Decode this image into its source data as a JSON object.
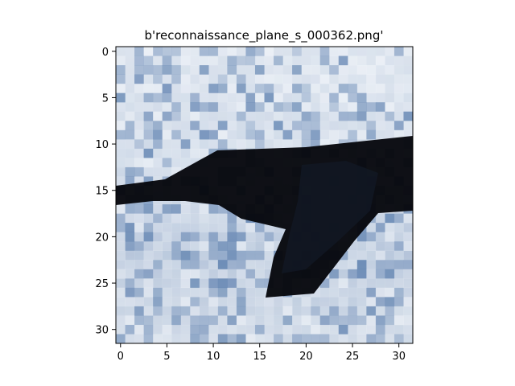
{
  "figure": {
    "title": "b'reconnaissance_plane_s_000362.png'"
  },
  "image": {
    "subject": "aircraft silhouette against a cloudy sky",
    "pixel_grid": [
      32,
      32
    ],
    "palette": {
      "sky_light": "#dfe6ef",
      "sky_blue": "#8fa7c8",
      "sky_deep": "#5c7fae",
      "cloud_white": "#f2f5f9",
      "plane_dark": "#06070d",
      "plane_edge": "#1b2738"
    }
  },
  "axes": {
    "x_ticks": [
      "0",
      "5",
      "10",
      "15",
      "20",
      "25",
      "30"
    ],
    "y_ticks": [
      "0",
      "5",
      "10",
      "15",
      "20",
      "25",
      "30"
    ],
    "x_range": [
      -0.5,
      31.5
    ],
    "y_range": [
      -0.5,
      31.5
    ]
  }
}
